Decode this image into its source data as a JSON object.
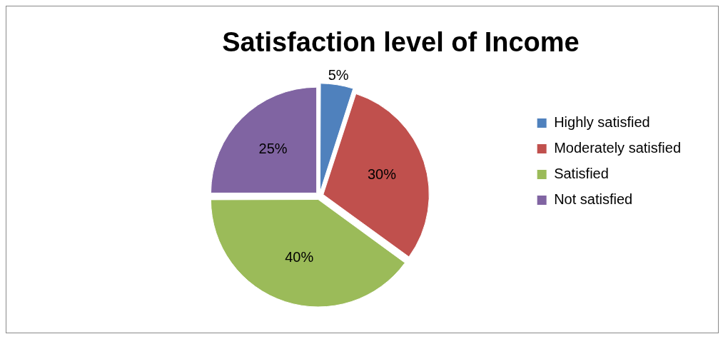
{
  "chart_data": {
    "type": "pie",
    "title": "Satisfaction level of Income",
    "categories": [
      "Highly satisfied",
      "Moderately satisfied",
      "Satisfied",
      "Not satisfied"
    ],
    "values": [
      5,
      30,
      40,
      25
    ],
    "colors": [
      "#4f81bd",
      "#c0504d",
      "#9bbb59",
      "#8064a2"
    ],
    "value_labels": [
      "5%",
      "30%",
      "40%",
      "25%"
    ],
    "legend": "right"
  }
}
